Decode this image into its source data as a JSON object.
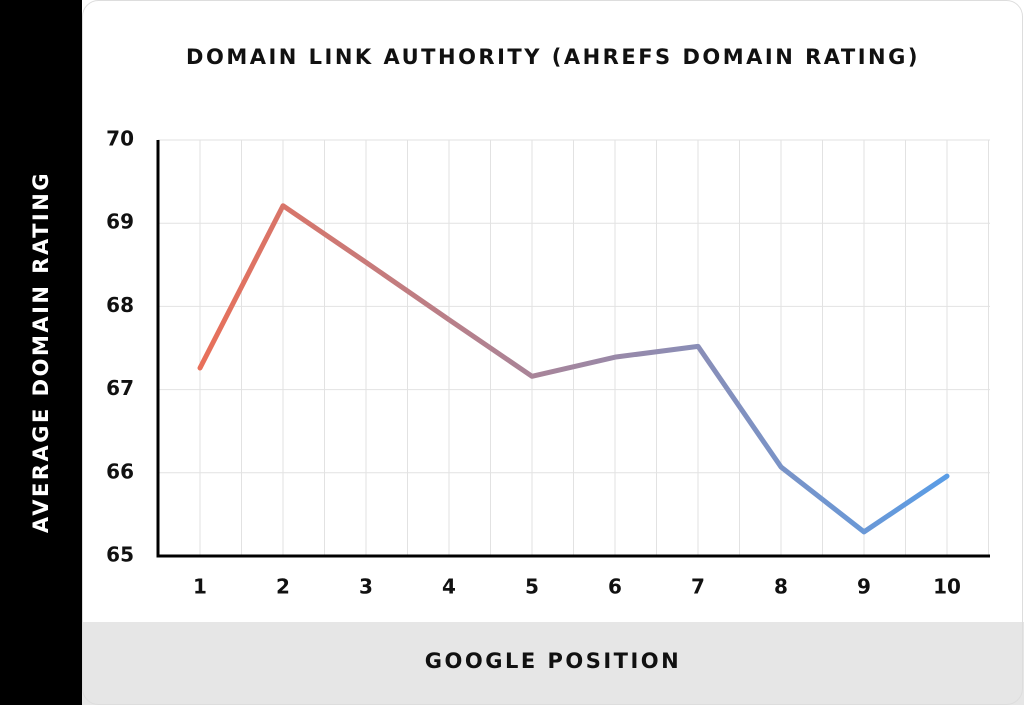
{
  "chart_data": {
    "type": "line",
    "title": "DOMAIN LINK AUTHORITY (AHREFS DOMAIN RATING)",
    "y_label": "AVERAGE DOMAIN RATING",
    "x_label": "GOOGLE POSITION",
    "categories": [
      "1",
      "2",
      "3",
      "4",
      "5",
      "6",
      "7",
      "8",
      "9",
      "10"
    ],
    "values": [
      67.26,
      69.21,
      68.53,
      67.84,
      67.16,
      67.39,
      67.52,
      66.07,
      65.29,
      65.96
    ],
    "gradient": [
      "#e8705a",
      "#5a9de6"
    ],
    "ylim": [
      65,
      70
    ],
    "yticks": [
      65,
      66,
      67,
      68,
      69,
      70
    ],
    "grid": true
  }
}
